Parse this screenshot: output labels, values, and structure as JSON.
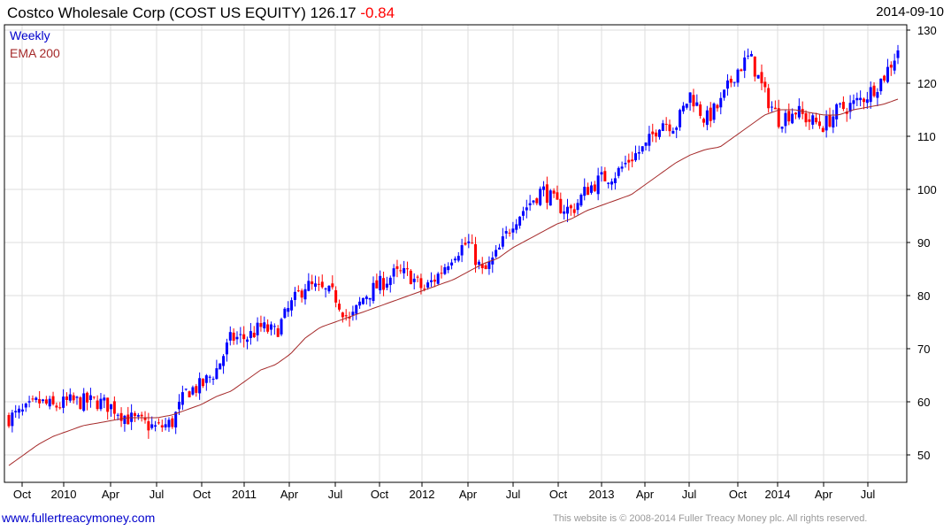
{
  "header": {
    "title": "Costco Wholesale Corp (COST US EQUITY) 126.17",
    "change": "-0.84",
    "date": "2014-09-10"
  },
  "legend": {
    "series": "Weekly",
    "ema": "EMA 200"
  },
  "footer": {
    "site": "www.fullertreacymoney.com",
    "copyright": "This website is © 2008-2014 Fuller Treacy Money plc. All rights reserved."
  },
  "colors": {
    "up": "#0000ff",
    "down": "#ff0000",
    "ema": "#a52a2a",
    "grid": "#dddddd"
  },
  "chart_data": {
    "type": "candlestick",
    "frequency": "weekly",
    "ylim": [
      45,
      130
    ],
    "yticks": [
      50,
      60,
      70,
      80,
      90,
      100,
      110,
      120,
      130
    ],
    "xticks": [
      "Oct",
      "2010",
      "Apr",
      "Jul",
      "Oct",
      "2011",
      "Apr",
      "Jul",
      "Oct",
      "2012",
      "Apr",
      "Jul",
      "Oct",
      "2013",
      "Apr",
      "Jul",
      "Oct",
      "2014",
      "Apr",
      "Jul"
    ],
    "months": "2009-09 to 2014-09",
    "monthly_close": [
      57,
      58,
      60,
      59,
      60,
      60,
      60,
      59,
      57,
      56,
      55,
      56,
      62,
      63,
      66,
      72,
      72,
      74,
      73,
      78,
      82,
      81,
      80,
      75,
      80,
      82,
      84,
      84,
      81,
      84,
      88,
      90,
      84,
      88,
      94,
      97,
      100,
      97,
      96,
      100,
      102,
      103,
      106,
      108,
      113,
      112,
      118,
      113,
      116,
      122,
      125,
      118,
      113,
      115,
      113,
      112,
      115,
      116,
      118,
      121,
      126.17
    ],
    "ema200_monthly": [
      48,
      50,
      52,
      53.5,
      54.5,
      55.5,
      56,
      56.5,
      57,
      57,
      57,
      57.5,
      58.5,
      59.5,
      61,
      62,
      64,
      66,
      67,
      69,
      72,
      74,
      75,
      76,
      77,
      78,
      79,
      80,
      81,
      82,
      83,
      84.5,
      86,
      87,
      89,
      90.5,
      92,
      93.5,
      94.5,
      96,
      97,
      98,
      99,
      101,
      103,
      105,
      106.5,
      107.5,
      108,
      110,
      112,
      114,
      115,
      115,
      114.5,
      114,
      114,
      115,
      115.5,
      116,
      117
    ]
  }
}
